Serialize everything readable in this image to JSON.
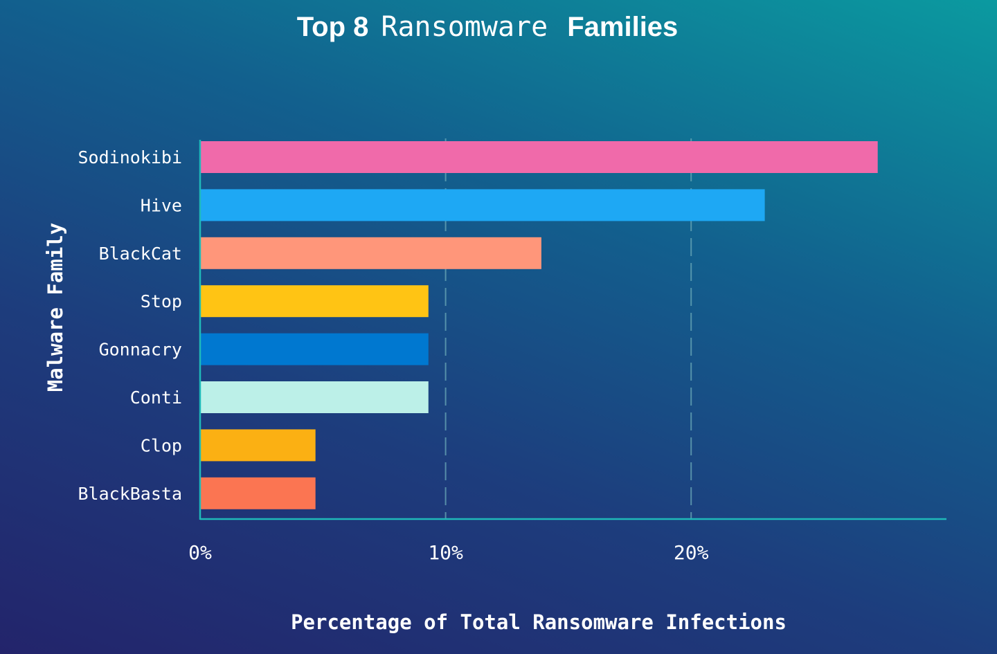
{
  "chart_data": {
    "type": "bar",
    "orientation": "horizontal",
    "title": {
      "part1": "Top 8",
      "part2": "Ransomware",
      "part3": "Families"
    },
    "xlabel": "Percentage of Total Ransomware Infections",
    "ylabel": "Malware Family",
    "xlim": [
      0,
      30.4
    ],
    "xticks": [
      0,
      10,
      20
    ],
    "xtick_labels": [
      "0%",
      "10%",
      "20%"
    ],
    "grid": "vertical dashed",
    "categories": [
      "Sodinokibi",
      "Hive",
      "BlackCat",
      "Stop",
      "Gonnacry",
      "Conti",
      "Clop",
      "BlackBasta"
    ],
    "values": [
      27.6,
      23.0,
      13.9,
      9.3,
      9.3,
      9.3,
      4.7,
      4.7
    ],
    "colors": [
      "#f06aaa",
      "#1ea8f4",
      "#ff967a",
      "#ffc414",
      "#0078d0",
      "#bcf0e8",
      "#fbb013",
      "#fb7552"
    ],
    "axis_color": "#1fb9b9"
  }
}
